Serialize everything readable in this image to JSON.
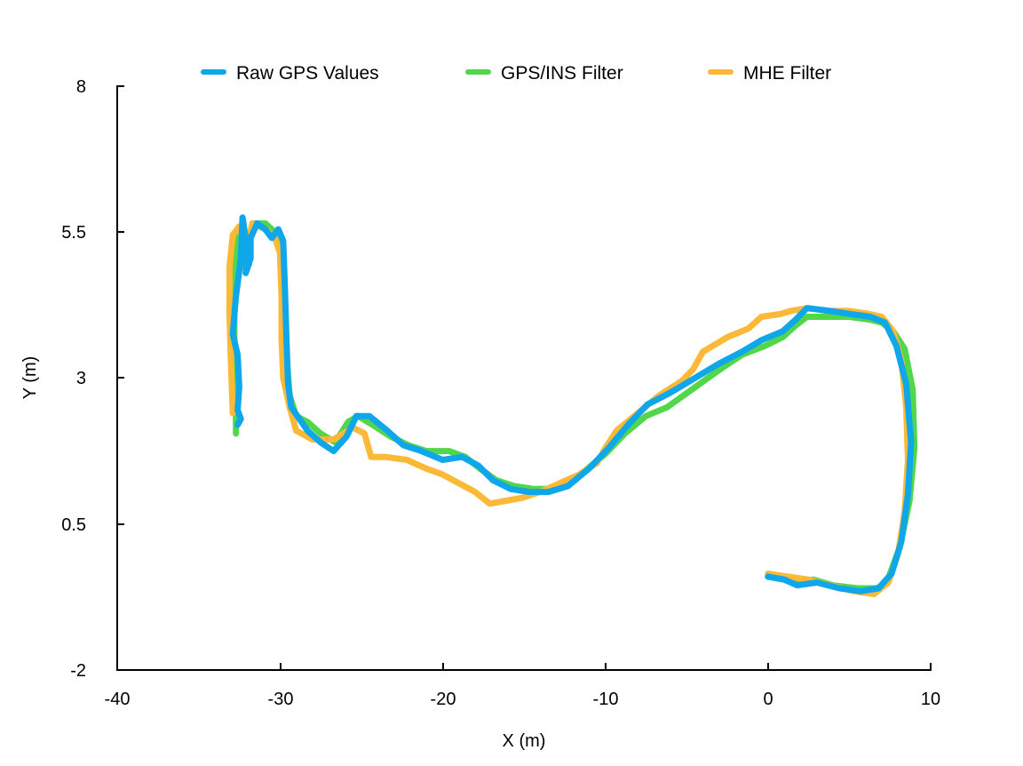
{
  "chart_data": {
    "type": "line",
    "title": "",
    "xlabel": "X (m)",
    "ylabel": "Y (m)",
    "xlim": [
      -40,
      10
    ],
    "ylim": [
      -2,
      8
    ],
    "x_ticks": [
      "-40",
      "-30",
      "-20",
      "-10",
      "0",
      "10"
    ],
    "y_ticks": [
      "-2",
      "0.5",
      "3",
      "5.5",
      "8"
    ],
    "legend_position": "top",
    "grid": false,
    "series": [
      {
        "name": "GPS/INS Filter",
        "color": "#52d64a",
        "points": [
          [
            -32.7,
            2.05
          ],
          [
            -32.7,
            2.8
          ],
          [
            -32.8,
            3.7
          ],
          [
            -32.8,
            4.4
          ],
          [
            -32.7,
            5.0
          ],
          [
            -32.5,
            5.5
          ],
          [
            -32.3,
            5.6
          ],
          [
            -32.1,
            5.3
          ],
          [
            -31.9,
            4.95
          ],
          [
            -32.0,
            5.35
          ],
          [
            -31.6,
            5.65
          ],
          [
            -30.9,
            5.65
          ],
          [
            -30.3,
            5.5
          ],
          [
            -29.8,
            5.05
          ],
          [
            -29.7,
            4.3
          ],
          [
            -29.6,
            3.4
          ],
          [
            -29.4,
            2.7
          ],
          [
            -29.0,
            2.35
          ],
          [
            -28.3,
            2.25
          ],
          [
            -27.5,
            2.05
          ],
          [
            -26.6,
            1.9
          ],
          [
            -25.8,
            2.25
          ],
          [
            -25.2,
            2.35
          ],
          [
            -24.3,
            2.2
          ],
          [
            -23.2,
            2.0
          ],
          [
            -22.1,
            1.85
          ],
          [
            -21.0,
            1.75
          ],
          [
            -19.6,
            1.75
          ],
          [
            -18.6,
            1.65
          ],
          [
            -17.7,
            1.45
          ],
          [
            -16.7,
            1.25
          ],
          [
            -15.6,
            1.15
          ],
          [
            -14.4,
            1.1
          ],
          [
            -13.4,
            1.1
          ],
          [
            -12.4,
            1.2
          ],
          [
            -11.3,
            1.4
          ],
          [
            -10.0,
            1.7
          ],
          [
            -8.8,
            2.05
          ],
          [
            -7.5,
            2.35
          ],
          [
            -6.2,
            2.5
          ],
          [
            -4.7,
            2.8
          ],
          [
            -3.2,
            3.1
          ],
          [
            -1.6,
            3.4
          ],
          [
            -0.2,
            3.55
          ],
          [
            0.9,
            3.7
          ],
          [
            1.7,
            3.9
          ],
          [
            2.4,
            4.05
          ],
          [
            3.8,
            4.05
          ],
          [
            5.0,
            4.05
          ],
          [
            6.3,
            4.0
          ],
          [
            7.0,
            3.95
          ],
          [
            7.7,
            3.8
          ],
          [
            8.4,
            3.5
          ],
          [
            8.9,
            2.8
          ],
          [
            9.0,
            1.8
          ],
          [
            8.7,
            0.9
          ],
          [
            8.1,
            0.1
          ],
          [
            7.3,
            -0.5
          ],
          [
            6.7,
            -0.6
          ],
          [
            5.5,
            -0.6
          ],
          [
            4.0,
            -0.55
          ],
          [
            2.8,
            -0.45
          ],
          [
            1.8,
            -0.5
          ],
          [
            1.0,
            -0.45
          ],
          [
            0.0,
            -0.4
          ]
        ]
      },
      {
        "name": "MHE Filter",
        "color": "#fbb937",
        "points": [
          [
            -32.9,
            2.4
          ],
          [
            -33.0,
            3.2
          ],
          [
            -33.1,
            4.1
          ],
          [
            -33.1,
            4.9
          ],
          [
            -32.9,
            5.45
          ],
          [
            -32.5,
            5.6
          ],
          [
            -32.2,
            5.3
          ],
          [
            -32.3,
            4.9
          ],
          [
            -31.7,
            5.65
          ],
          [
            -30.9,
            5.55
          ],
          [
            -30.3,
            5.4
          ],
          [
            -30.0,
            5.15
          ],
          [
            -29.9,
            4.4
          ],
          [
            -29.9,
            3.7
          ],
          [
            -29.8,
            3.0
          ],
          [
            -29.4,
            2.5
          ],
          [
            -29.0,
            2.1
          ],
          [
            -28.0,
            1.95
          ],
          [
            -26.7,
            1.95
          ],
          [
            -26.1,
            2.05
          ],
          [
            -25.5,
            2.15
          ],
          [
            -24.8,
            2.05
          ],
          [
            -24.4,
            1.65
          ],
          [
            -23.5,
            1.65
          ],
          [
            -22.2,
            1.6
          ],
          [
            -21.0,
            1.45
          ],
          [
            -20.0,
            1.35
          ],
          [
            -19.0,
            1.2
          ],
          [
            -18.0,
            1.05
          ],
          [
            -17.1,
            0.85
          ],
          [
            -16.1,
            0.9
          ],
          [
            -15.1,
            0.95
          ],
          [
            -14.0,
            1.05
          ],
          [
            -12.8,
            1.2
          ],
          [
            -11.6,
            1.35
          ],
          [
            -10.5,
            1.55
          ],
          [
            -10.0,
            1.8
          ],
          [
            -9.3,
            2.1
          ],
          [
            -8.0,
            2.4
          ],
          [
            -6.7,
            2.7
          ],
          [
            -5.3,
            2.95
          ],
          [
            -4.6,
            3.15
          ],
          [
            -4.0,
            3.45
          ],
          [
            -2.5,
            3.7
          ],
          [
            -1.2,
            3.85
          ],
          [
            -0.4,
            4.05
          ],
          [
            0.8,
            4.1
          ],
          [
            1.4,
            4.15
          ],
          [
            2.4,
            4.2
          ],
          [
            3.7,
            4.15
          ],
          [
            5.0,
            4.15
          ],
          [
            6.2,
            4.1
          ],
          [
            7.0,
            4.05
          ],
          [
            7.7,
            3.8
          ],
          [
            8.2,
            3.3
          ],
          [
            8.5,
            2.5
          ],
          [
            8.6,
            1.6
          ],
          [
            8.4,
            0.7
          ],
          [
            8.0,
            0.0
          ],
          [
            7.4,
            -0.5
          ],
          [
            6.5,
            -0.7
          ],
          [
            5.3,
            -0.65
          ],
          [
            3.8,
            -0.55
          ],
          [
            2.5,
            -0.45
          ],
          [
            1.2,
            -0.4
          ],
          [
            0.0,
            -0.35
          ]
        ]
      },
      {
        "name": "Raw GPS Values",
        "color": "#0fa7ea",
        "points": [
          [
            -32.6,
            2.2
          ],
          [
            -32.4,
            2.3
          ],
          [
            -32.6,
            2.45
          ],
          [
            -32.5,
            2.85
          ],
          [
            -32.6,
            3.4
          ],
          [
            -32.9,
            3.75
          ],
          [
            -32.7,
            4.4
          ],
          [
            -32.4,
            5.05
          ],
          [
            -32.3,
            5.75
          ],
          [
            -32.0,
            5.2
          ],
          [
            -32.1,
            4.8
          ],
          [
            -31.8,
            5.05
          ],
          [
            -31.8,
            5.4
          ],
          [
            -31.4,
            5.65
          ],
          [
            -30.9,
            5.55
          ],
          [
            -30.5,
            5.4
          ],
          [
            -30.1,
            5.55
          ],
          [
            -29.8,
            5.35
          ],
          [
            -29.7,
            4.6
          ],
          [
            -29.6,
            3.7
          ],
          [
            -29.5,
            2.9
          ],
          [
            -29.3,
            2.5
          ],
          [
            -28.8,
            2.3
          ],
          [
            -28.3,
            2.1
          ],
          [
            -27.5,
            1.9
          ],
          [
            -26.7,
            1.75
          ],
          [
            -25.9,
            2.0
          ],
          [
            -25.3,
            2.35
          ],
          [
            -24.5,
            2.35
          ],
          [
            -23.4,
            2.1
          ],
          [
            -22.4,
            1.85
          ],
          [
            -21.3,
            1.75
          ],
          [
            -20.0,
            1.6
          ],
          [
            -18.8,
            1.65
          ],
          [
            -17.8,
            1.5
          ],
          [
            -16.9,
            1.25
          ],
          [
            -15.8,
            1.1
          ],
          [
            -14.7,
            1.05
          ],
          [
            -13.5,
            1.05
          ],
          [
            -12.3,
            1.15
          ],
          [
            -11.0,
            1.45
          ],
          [
            -9.8,
            1.8
          ],
          [
            -8.6,
            2.2
          ],
          [
            -7.4,
            2.55
          ],
          [
            -6.0,
            2.75
          ],
          [
            -4.5,
            3.0
          ],
          [
            -3.0,
            3.25
          ],
          [
            -1.6,
            3.45
          ],
          [
            -0.4,
            3.65
          ],
          [
            0.9,
            3.8
          ],
          [
            1.7,
            4.0
          ],
          [
            2.4,
            4.2
          ],
          [
            3.8,
            4.15
          ],
          [
            5.0,
            4.1
          ],
          [
            6.3,
            4.05
          ],
          [
            7.2,
            3.95
          ],
          [
            7.9,
            3.55
          ],
          [
            8.5,
            2.9
          ],
          [
            8.8,
            1.9
          ],
          [
            8.6,
            1.0
          ],
          [
            8.2,
            0.2
          ],
          [
            7.6,
            -0.35
          ],
          [
            6.8,
            -0.6
          ],
          [
            5.7,
            -0.65
          ],
          [
            4.4,
            -0.6
          ],
          [
            3.0,
            -0.5
          ],
          [
            1.8,
            -0.55
          ],
          [
            1.0,
            -0.45
          ],
          [
            0.0,
            -0.4
          ]
        ]
      }
    ]
  }
}
